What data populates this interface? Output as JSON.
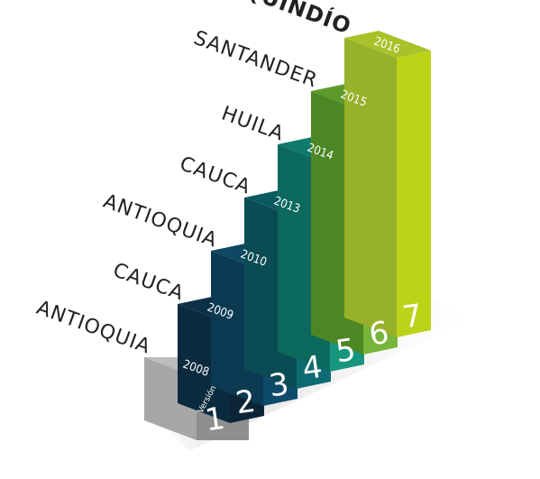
{
  "steps": [
    {
      "version": "1",
      "year": "2008",
      "place": "ANTIOQUIA",
      "top": "#bdbdbd",
      "left": "#a7a7a7",
      "front": "#8f8f8f",
      "numfill": "#1f3444"
    },
    {
      "version": "2",
      "year": "2009",
      "place": "CAUCA",
      "top": "#0d3148",
      "left": "#0a2a3e",
      "front": "#0c2436"
    },
    {
      "version": "3",
      "year": "2010",
      "place": "ANTIOQUIA",
      "top": "#0f4863",
      "left": "#0b3a52",
      "front": "#0e4b6b"
    },
    {
      "version": "4",
      "year": "2013",
      "place": "CAUCA",
      "top": "#0c5a61",
      "left": "#0a4c54",
      "front": "#0f6b73"
    },
    {
      "version": "5",
      "year": "2014",
      "place": "HUILA",
      "top": "#0f7a6c",
      "left": "#0c695d",
      "front": "#17957f"
    },
    {
      "version": "6",
      "year": "2015",
      "place": "SANTANDER",
      "top": "#5d9a2c",
      "left": "#4d8625",
      "front": "#77b53a"
    },
    {
      "version": "7",
      "year": "2016",
      "place": "QUINDÍO",
      "top": "#a8c22a",
      "left": "#98b12a",
      "front": "#bcd418"
    }
  ],
  "version_label": "Versión"
}
